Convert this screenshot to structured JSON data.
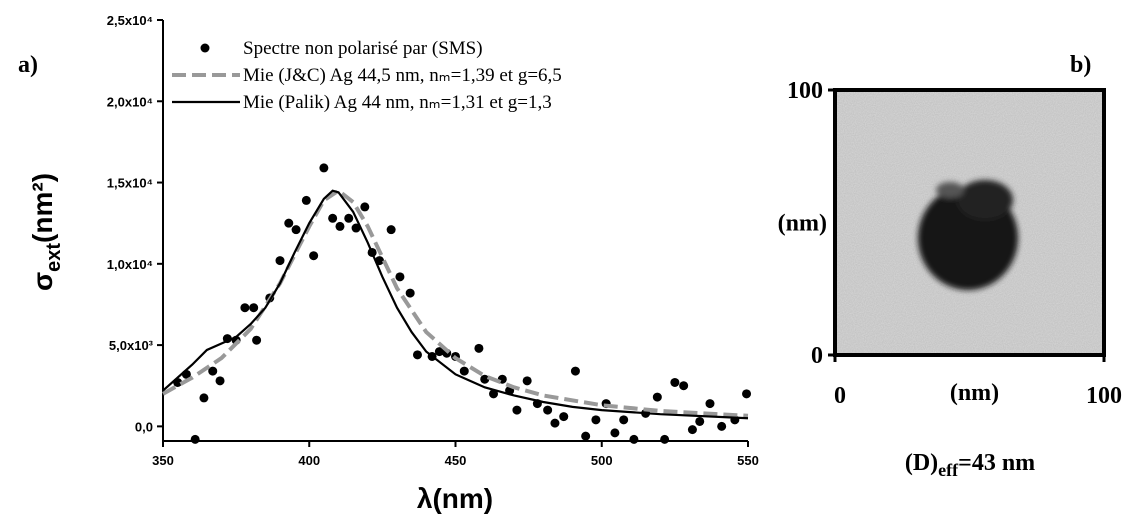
{
  "chart_data": [
    {
      "type": "spectrum",
      "panel_label": "a)",
      "xlabel": "λ(nm)",
      "ylabel": {
        "symbol": "σ",
        "subscript": "ext",
        "unit": "(nm²)"
      },
      "xlim": [
        350,
        550
      ],
      "xticks": [
        350,
        400,
        450,
        500,
        550
      ],
      "ylim": [
        -900,
        25000
      ],
      "yticks": [
        {
          "value": 0,
          "label": "0,0"
        },
        {
          "value": 5000,
          "label": "5,0x10³"
        },
        {
          "value": 10000,
          "label": "1,0x10⁴"
        },
        {
          "value": 15000,
          "label": "1,5x10⁴"
        },
        {
          "value": 20000,
          "label": "2,0x10⁴"
        },
        {
          "value": 25000,
          "label": "2,5x10⁴"
        }
      ],
      "legend": "top",
      "series": [
        {
          "name": "Spectre non polarisé par (SMS)",
          "kind": "scatter",
          "color": "#000000",
          "x": [
            355,
            358,
            361,
            364,
            367,
            369.5,
            372,
            375,
            378,
            381,
            382,
            386.5,
            390,
            393,
            395.5,
            399,
            401.5,
            405,
            408,
            410.5,
            413.5,
            416,
            419,
            421.5,
            424,
            428,
            431,
            434.5,
            437,
            442,
            444.5,
            447,
            450,
            453,
            458,
            460,
            463,
            466,
            468.5,
            471,
            474.5,
            478,
            481.5,
            484,
            487,
            491,
            494.5,
            498,
            501.5,
            504.5,
            507.5,
            511,
            515,
            519,
            521.5,
            525,
            528,
            531,
            533.5,
            537,
            541,
            545.5,
            549.5
          ],
          "values": [
            2700,
            3200,
            -800,
            1750,
            3400,
            2800,
            5400,
            5300,
            7300,
            7300,
            5300,
            7900,
            10200,
            12500,
            12100,
            13900,
            10500,
            15900,
            12800,
            12300,
            12800,
            12200,
            13500,
            10700,
            10200,
            12100,
            9200,
            8200,
            4400,
            4300,
            4600,
            4500,
            4300,
            3400,
            4800,
            2900,
            2000,
            2900,
            2200,
            1000,
            2800,
            1400,
            1000,
            200,
            600,
            3400,
            -600,
            400,
            1400,
            -400,
            400,
            -800,
            800,
            1800,
            -800,
            2700,
            2500,
            -200,
            300,
            1400,
            0,
            400,
            2000
          ]
        },
        {
          "name": "Mie (J&C) Ag 44,5 nm, nₘ=1,39 et g=6,5",
          "kind": "dashed",
          "color": "#999999",
          "x": [
            350,
            360,
            370,
            380,
            390,
            400,
            405,
            410,
            415,
            420,
            425,
            430,
            440,
            450,
            460,
            470,
            480,
            500,
            520,
            550
          ],
          "values": [
            2000,
            3000,
            4200,
            6000,
            8800,
            12300,
            13900,
            14500,
            13800,
            12300,
            10400,
            8500,
            5800,
            4200,
            3100,
            2400,
            1900,
            1300,
            950,
            650
          ]
        },
        {
          "name": "Mie (Palik) Ag 44 nm, nₘ=1,31 et g=1,3",
          "kind": "solid",
          "color": "#000000",
          "x": [
            350,
            360,
            365,
            370,
            375,
            380,
            385,
            390,
            395,
            400,
            405,
            408,
            410,
            415,
            420,
            425,
            430,
            435,
            440,
            450,
            460,
            470,
            480,
            490,
            500,
            520,
            550
          ],
          "values": [
            2200,
            3800,
            4700,
            5100,
            5500,
            6300,
            7300,
            8800,
            10700,
            12500,
            14000,
            14500,
            14400,
            13200,
            11300,
            9200,
            7300,
            5800,
            4600,
            3200,
            2400,
            1900,
            1500,
            1200,
            1000,
            750,
            500
          ]
        }
      ]
    },
    {
      "type": "image",
      "panel_label": "b)",
      "xlabel": "(nm)",
      "ylabel": "(nm)",
      "xlim": [
        0,
        100
      ],
      "xticks": [
        0,
        100
      ],
      "ylim": [
        0,
        100
      ],
      "yticks": [
        0,
        100
      ],
      "caption": {
        "main": "(D)",
        "subscript": "eff",
        "rest": "=43 nm"
      }
    }
  ]
}
